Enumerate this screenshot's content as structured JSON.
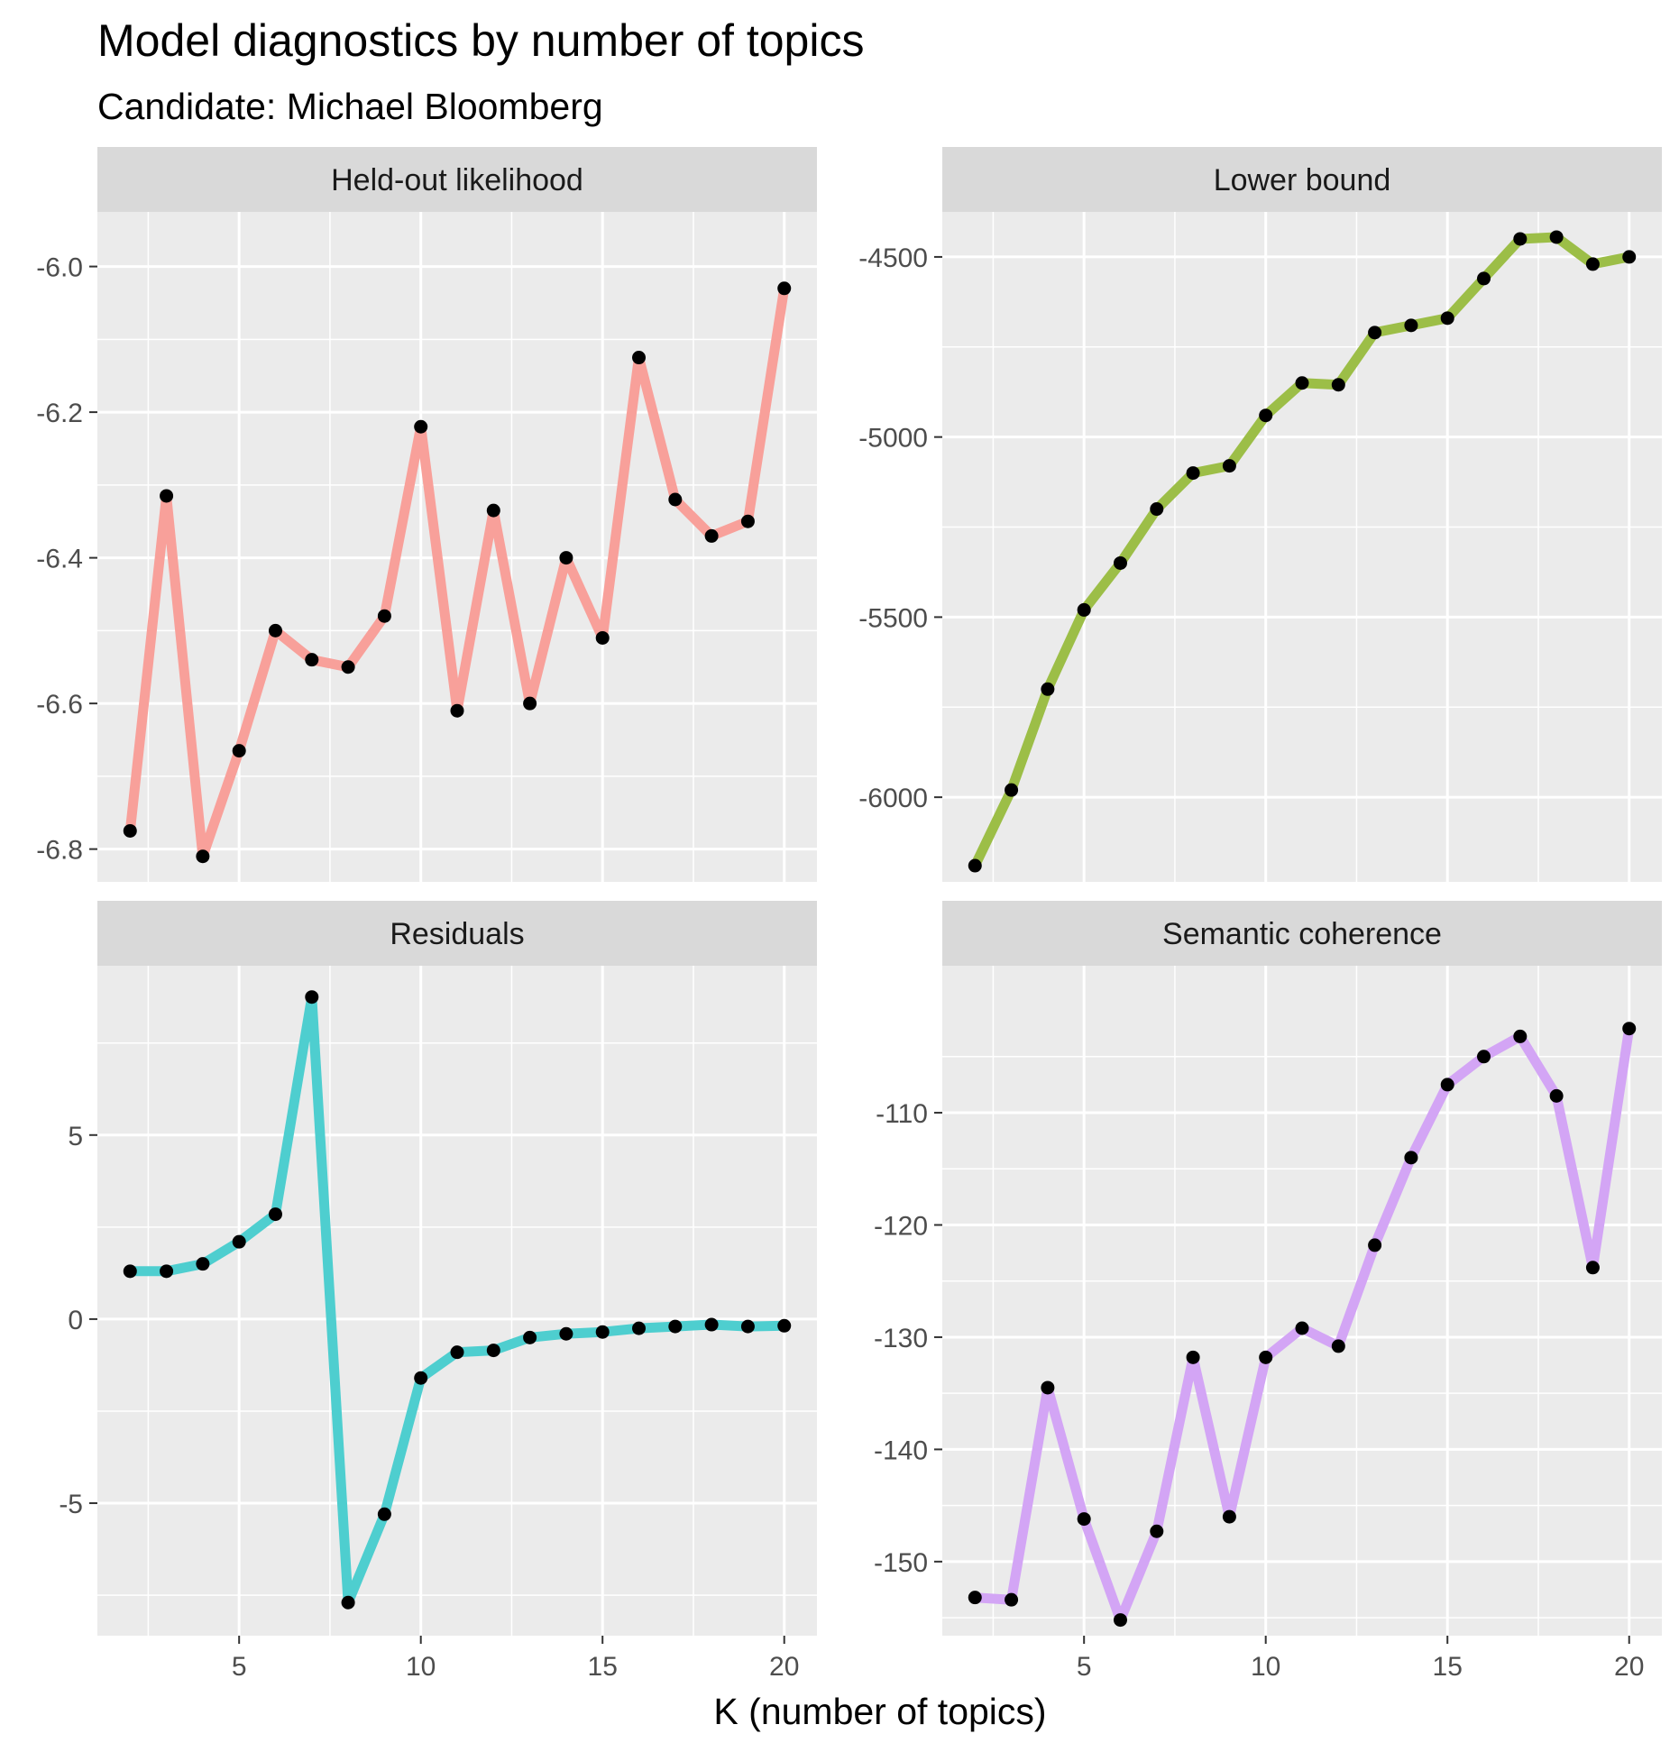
{
  "chart_data": {
    "type": "line",
    "title": "Model diagnostics by number of topics",
    "subtitle": "Candidate: Michael Bloomberg",
    "xlabel": "K (number of topics)",
    "ylabel": "",
    "x": [
      2,
      3,
      4,
      5,
      6,
      7,
      8,
      9,
      10,
      11,
      12,
      13,
      14,
      15,
      16,
      17,
      18,
      19,
      20
    ],
    "xlim": [
      1.1,
      20.9
    ],
    "xticks": [
      "5",
      "10",
      "15",
      "20"
    ],
    "panels": [
      {
        "name": "Held-out likelihood",
        "color": "#F8A09A",
        "values": [
          -6.775,
          -6.315,
          -6.81,
          -6.665,
          -6.5,
          -6.54,
          -6.55,
          -6.48,
          -6.22,
          -6.61,
          -6.335,
          -6.6,
          -6.4,
          -6.51,
          -6.125,
          -6.32,
          -6.37,
          -6.35,
          -6.03
        ],
        "ylim": [
          -6.845,
          -5.925
        ],
        "yticks": [
          "-6.0",
          "-6.2",
          "-6.4",
          "-6.6",
          "-6.8"
        ]
      },
      {
        "name": "Lower bound",
        "color": "#9CBE47",
        "values": [
          -6190,
          -5980,
          -5700,
          -5480,
          -5350,
          -5200,
          -5100,
          -5080,
          -4940,
          -4850,
          -4855,
          -4710,
          -4690,
          -4670,
          -4560,
          -4450,
          -4445,
          -4520,
          -4500
        ],
        "ylim": [
          -6235,
          -4375
        ],
        "yticks": [
          "-4500",
          "-5000",
          "-5500",
          "-6000"
        ]
      },
      {
        "name": "Residuals",
        "color": "#4ECECF",
        "values": [
          1.3,
          1.3,
          1.5,
          2.1,
          2.85,
          8.75,
          -7.7,
          -5.3,
          -1.6,
          -0.9,
          -0.85,
          -0.5,
          -0.4,
          -0.35,
          -0.25,
          -0.2,
          -0.15,
          -0.2,
          -0.18
        ],
        "ylim": [
          -8.6,
          9.6
        ],
        "yticks": [
          "5",
          "0",
          "-5"
        ]
      },
      {
        "name": "Semantic coherence",
        "color": "#D3A5F5",
        "values": [
          -153.2,
          -153.4,
          -134.5,
          -146.2,
          -155.2,
          -147.3,
          -131.8,
          -146,
          -131.8,
          -129.2,
          -130.8,
          -121.8,
          -114,
          -107.5,
          -105,
          -103.2,
          -108.5,
          -123.8,
          -102.5
        ],
        "ylim": [
          -156.6,
          -96.9
        ],
        "yticks": [
          "-110",
          "-120",
          "-130",
          "-140",
          "-150"
        ]
      }
    ]
  }
}
